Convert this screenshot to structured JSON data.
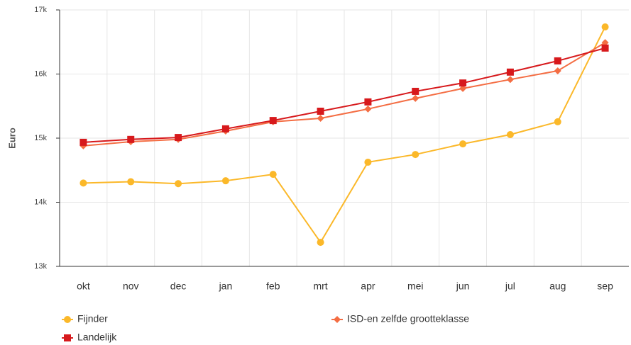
{
  "chart_data": {
    "type": "line",
    "y_label": "Euro",
    "categories": [
      "okt",
      "nov",
      "dec",
      "jan",
      "feb",
      "mrt",
      "apr",
      "mei",
      "jun",
      "jul",
      "aug",
      "sep"
    ],
    "series": [
      {
        "name": "Fijnder",
        "color": "#fbb829",
        "marker": "circle",
        "values": [
          14300,
          14320,
          14290,
          14335,
          14435,
          13375,
          14625,
          14745,
          14910,
          15055,
          15255,
          16735
        ]
      },
      {
        "name": "ISD-en zelfde grootteklasse",
        "color": "#f46d43",
        "marker": "diamond",
        "values": [
          14880,
          14945,
          14980,
          15110,
          15255,
          15310,
          15455,
          15620,
          15775,
          15915,
          16050,
          16490
        ]
      },
      {
        "name": "Landelijk",
        "color": "#d7191c",
        "marker": "square",
        "values": [
          14935,
          14980,
          15010,
          15145,
          15275,
          15420,
          15565,
          15730,
          15860,
          16030,
          16205,
          16405
        ]
      }
    ],
    "ylim": [
      13000,
      17000
    ],
    "yticks": [
      {
        "value": 13000,
        "label": "13k"
      },
      {
        "value": 14000,
        "label": "14k"
      },
      {
        "value": 15000,
        "label": "15k"
      },
      {
        "value": 16000,
        "label": "16k"
      },
      {
        "value": 17000,
        "label": "17k"
      }
    ],
    "grid": true
  }
}
